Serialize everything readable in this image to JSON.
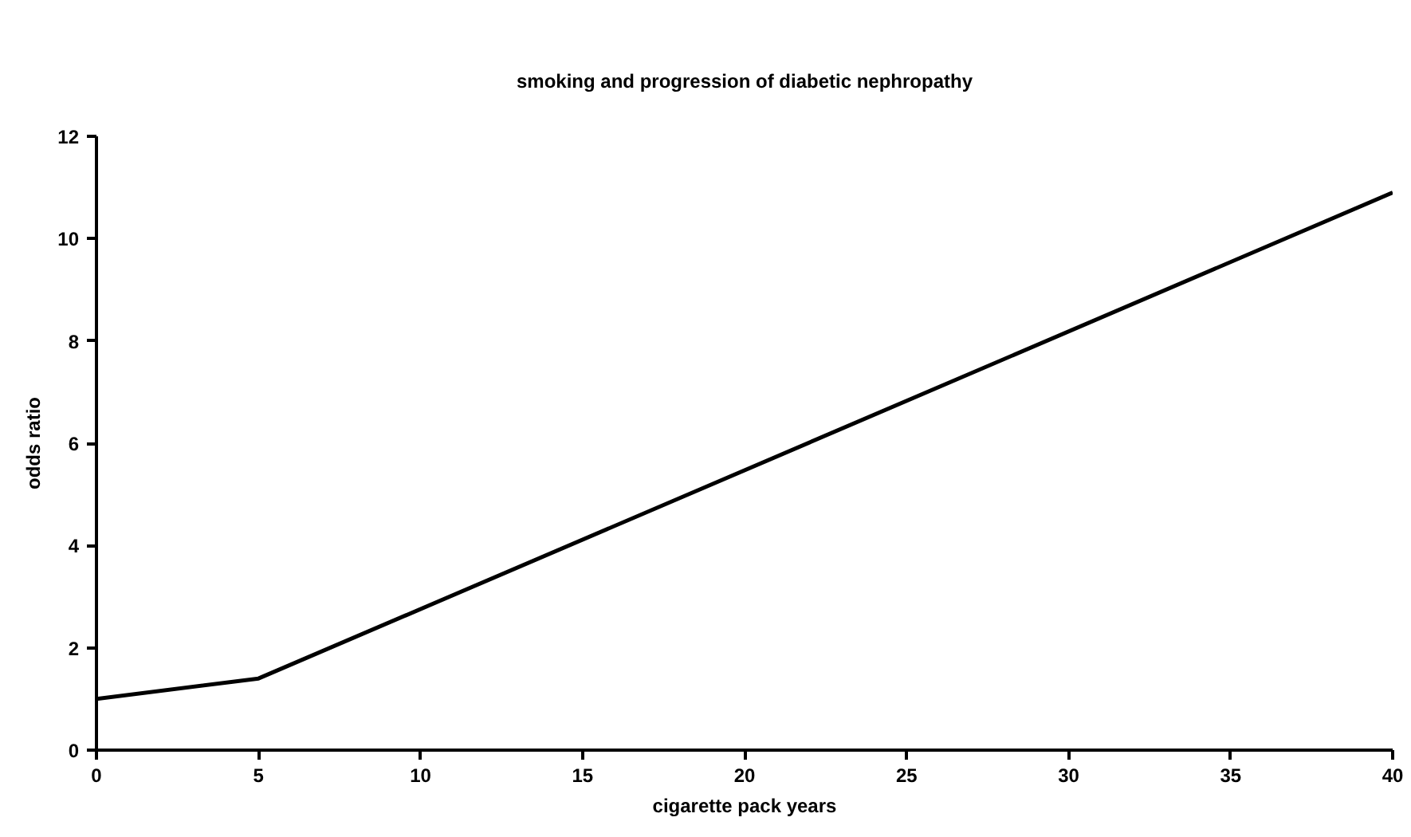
{
  "chart_data": {
    "type": "line",
    "title": "smoking and progression of diabetic nephropathy",
    "xlabel": "cigarette pack years",
    "ylabel": "odds ratio",
    "x": [
      0,
      5,
      40
    ],
    "series": [
      {
        "color": "#000000",
        "values": [
          1.0,
          1.4,
          10.9
        ]
      }
    ],
    "xlim": [
      0,
      40
    ],
    "xticks": [
      0,
      5,
      10,
      15,
      20,
      25,
      30,
      35,
      40
    ],
    "ylim": [
      0,
      12
    ],
    "yticks": [
      0,
      2,
      4,
      6,
      8,
      10,
      12
    ],
    "grid": false,
    "marker": "none",
    "line_style": "solid"
  }
}
